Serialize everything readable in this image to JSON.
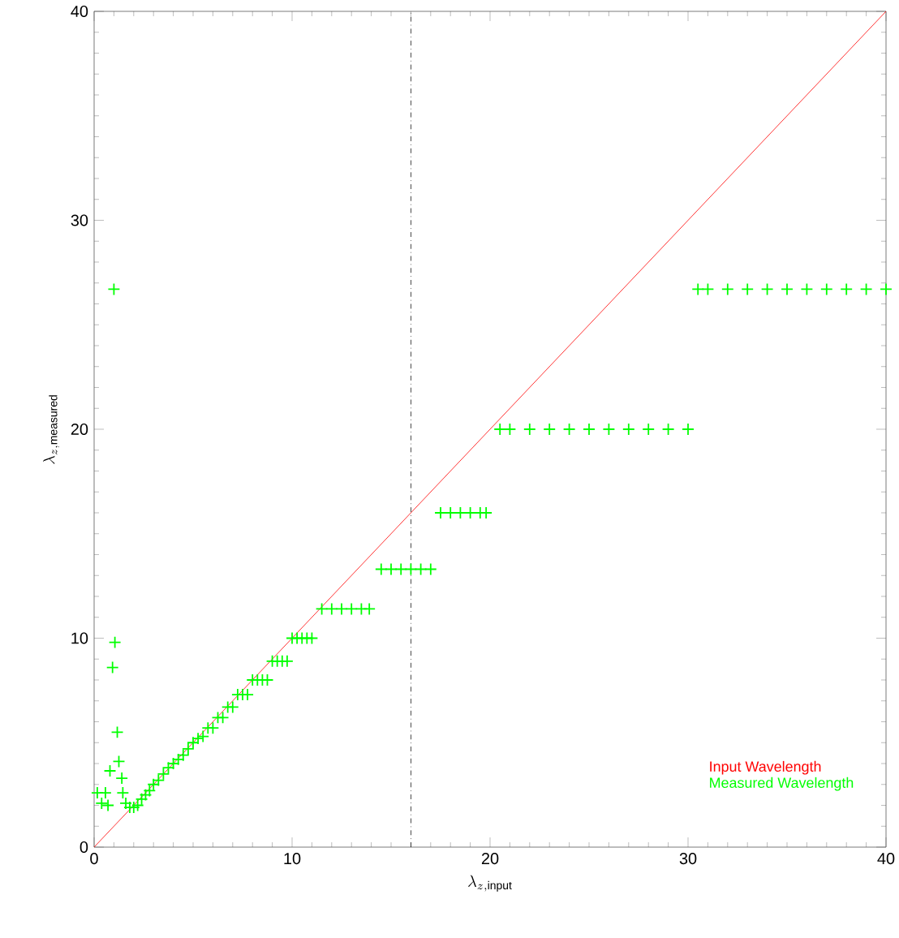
{
  "chart_data": {
    "type": "scatter",
    "xlabel": "\\lambda_{z,\\mathrm{input}}",
    "ylabel": "\\lambda_{z,\\mathrm{measured}}",
    "xlim": [
      0,
      40
    ],
    "ylim": [
      0,
      40
    ],
    "xticks": [
      0,
      10,
      20,
      30,
      40
    ],
    "yticks": [
      0,
      10,
      20,
      30,
      40
    ],
    "grid": false,
    "legend": "bottom right",
    "series": [
      {
        "name": "Input Wavelength",
        "type": "line",
        "color": "#ff0000",
        "marker": "none",
        "line_style": "solid",
        "x": [
          0,
          40
        ],
        "values": [
          0,
          40
        ]
      },
      {
        "name": "Measured Wavelength",
        "color": "#00ff00",
        "marker": "cross",
        "x": [
          0.16,
          0.38,
          0.57,
          0.7,
          0.8,
          0.93,
          1.0,
          1.05,
          1.17,
          1.25,
          1.4,
          1.45,
          1.6,
          1.8,
          2.0,
          2.2,
          2.4,
          2.6,
          2.8,
          3.0,
          3.25,
          3.5,
          3.75,
          4.0,
          4.25,
          4.5,
          4.75,
          5.0,
          5.25,
          5.5,
          5.75,
          6.0,
          6.25,
          6.5,
          6.75,
          7.0,
          7.25,
          7.5,
          7.75,
          8.0,
          8.25,
          8.5,
          8.75,
          9.0,
          9.25,
          9.5,
          9.75,
          10.0,
          10.25,
          10.5,
          10.75,
          11.0,
          11.5,
          12.0,
          12.5,
          13.0,
          13.5,
          13.9,
          14.5,
          15.0,
          15.5,
          16.0,
          16.5,
          17.0,
          17.5,
          18.0,
          18.5,
          19.0,
          19.5,
          19.8,
          20.5,
          21.0,
          22.0,
          23.0,
          24.0,
          25.0,
          26.0,
          27.0,
          28.0,
          29.0,
          30.0,
          30.5,
          31.0,
          32.0,
          33.0,
          34.0,
          35.0,
          36.0,
          37.0,
          38.0,
          39.0,
          40.0
        ],
        "values": [
          2.6,
          2.1,
          2.6,
          2.0,
          3.65,
          8.6,
          26.7,
          9.8,
          5.5,
          4.1,
          3.3,
          2.6,
          2.1,
          1.9,
          1.9,
          2.0,
          2.3,
          2.5,
          2.7,
          3.0,
          3.2,
          3.5,
          3.8,
          4.0,
          4.2,
          4.4,
          4.7,
          5.0,
          5.2,
          5.3,
          5.7,
          5.7,
          6.2,
          6.2,
          6.7,
          6.7,
          7.3,
          7.3,
          7.3,
          8.0,
          8.0,
          8.0,
          8.0,
          8.9,
          8.9,
          8.9,
          8.9,
          10.0,
          10.0,
          10.0,
          10.0,
          10.0,
          11.4,
          11.4,
          11.4,
          11.4,
          11.4,
          11.4,
          13.3,
          13.3,
          13.3,
          13.3,
          13.3,
          13.3,
          16.0,
          16.0,
          16.0,
          16.0,
          16.0,
          16.0,
          20.0,
          20.0,
          20.0,
          20.0,
          20.0,
          20.0,
          20.0,
          20.0,
          20.0,
          20.0,
          20.0,
          26.7,
          26.7,
          26.7,
          26.7,
          26.7,
          26.7,
          26.7,
          26.7,
          26.7,
          26.7,
          26.7
        ]
      }
    ],
    "ref_lines": [
      {
        "axis": "x",
        "value": 16,
        "color": "#000000",
        "line_style": "dashdot"
      }
    ]
  }
}
